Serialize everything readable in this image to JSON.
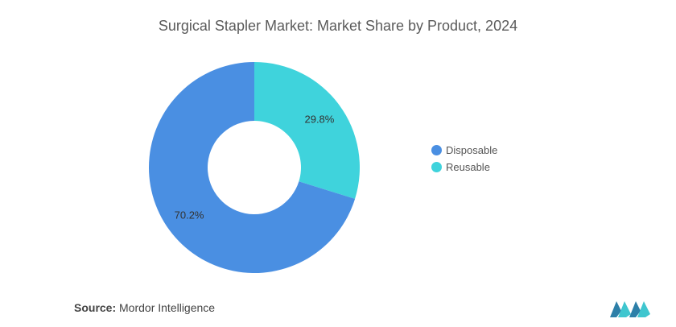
{
  "header": {
    "title": "Surgical Stapler Market: Market Share by Product, 2024"
  },
  "chart_data": {
    "type": "pie",
    "donut": true,
    "title": "Surgical Stapler Market: Market Share by Product, 2024",
    "categories": [
      "Disposable",
      "Reusable"
    ],
    "values": [
      70.2,
      29.8
    ],
    "labels": [
      "70.2%",
      "29.8%"
    ],
    "colors": [
      "#4a8fe2",
      "#3fd3dc"
    ],
    "legend_position": "right"
  },
  "legend": {
    "items": [
      {
        "label": "Disposable",
        "color": "#4a8fe2"
      },
      {
        "label": "Reusable",
        "color": "#3fd3dc"
      }
    ]
  },
  "footer": {
    "source_label": "Source:",
    "source_value": "Mordor Intelligence",
    "logo_icon": "mordor-intelligence-logo-icon"
  }
}
